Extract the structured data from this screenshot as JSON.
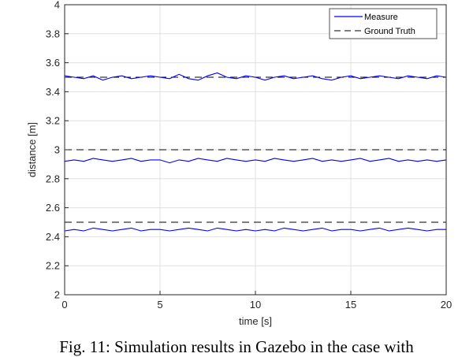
{
  "chart_data": {
    "type": "line",
    "title": "",
    "xlabel": "time [s]",
    "ylabel": "distance [m]",
    "xlim": [
      0,
      20
    ],
    "ylim": [
      2,
      4
    ],
    "xticks": [
      "0",
      "5",
      "10",
      "15",
      "20"
    ],
    "yticks": [
      "2",
      "2.2",
      "2.4",
      "2.6",
      "2.8",
      "3",
      "3.2",
      "3.4",
      "3.6",
      "3.8",
      "4"
    ],
    "grid": true,
    "legend_position": "top-right",
    "legend": [
      "Measure",
      "Ground Truth"
    ],
    "series": [
      {
        "name": "Measure",
        "style": "solid",
        "color": "#0000ff",
        "x": [
          0,
          0.5,
          1,
          1.5,
          2,
          2.5,
          3,
          3.5,
          4,
          4.5,
          5,
          5.5,
          6,
          6.5,
          7,
          7.5,
          8,
          8.5,
          9,
          9.5,
          10,
          10.5,
          11,
          11.5,
          12,
          12.5,
          13,
          13.5,
          14,
          14.5,
          15,
          15.5,
          16,
          16.5,
          17,
          17.5,
          18,
          18.5,
          19,
          19.5,
          20
        ],
        "y": [
          3.51,
          3.5,
          3.49,
          3.51,
          3.48,
          3.5,
          3.51,
          3.49,
          3.5,
          3.51,
          3.5,
          3.49,
          3.52,
          3.49,
          3.48,
          3.51,
          3.53,
          3.5,
          3.49,
          3.51,
          3.5,
          3.48,
          3.5,
          3.51,
          3.49,
          3.5,
          3.51,
          3.49,
          3.48,
          3.5,
          3.51,
          3.49,
          3.5,
          3.51,
          3.5,
          3.49,
          3.51,
          3.5,
          3.49,
          3.51,
          3.5
        ],
        "ground_truth": 3.5
      },
      {
        "name": "Measure",
        "style": "solid",
        "color": "#0000ff",
        "x": [
          0,
          0.5,
          1,
          1.5,
          2,
          2.5,
          3,
          3.5,
          4,
          4.5,
          5,
          5.5,
          6,
          6.5,
          7,
          7.5,
          8,
          8.5,
          9,
          9.5,
          10,
          10.5,
          11,
          11.5,
          12,
          12.5,
          13,
          13.5,
          14,
          14.5,
          15,
          15.5,
          16,
          16.5,
          17,
          17.5,
          18,
          18.5,
          19,
          19.5,
          20
        ],
        "y": [
          2.92,
          2.93,
          2.92,
          2.94,
          2.93,
          2.92,
          2.93,
          2.94,
          2.92,
          2.93,
          2.93,
          2.91,
          2.93,
          2.92,
          2.94,
          2.93,
          2.92,
          2.94,
          2.93,
          2.92,
          2.93,
          2.92,
          2.94,
          2.93,
          2.92,
          2.93,
          2.94,
          2.92,
          2.93,
          2.92,
          2.93,
          2.94,
          2.92,
          2.93,
          2.94,
          2.92,
          2.93,
          2.92,
          2.93,
          2.92,
          2.93
        ],
        "ground_truth": 3.0
      },
      {
        "name": "Measure",
        "style": "solid",
        "color": "#0000ff",
        "x": [
          0,
          0.5,
          1,
          1.5,
          2,
          2.5,
          3,
          3.5,
          4,
          4.5,
          5,
          5.5,
          6,
          6.5,
          7,
          7.5,
          8,
          8.5,
          9,
          9.5,
          10,
          10.5,
          11,
          11.5,
          12,
          12.5,
          13,
          13.5,
          14,
          14.5,
          15,
          15.5,
          16,
          16.5,
          17,
          17.5,
          18,
          18.5,
          19,
          19.5,
          20
        ],
        "y": [
          2.44,
          2.45,
          2.44,
          2.46,
          2.45,
          2.44,
          2.45,
          2.46,
          2.44,
          2.45,
          2.45,
          2.44,
          2.45,
          2.46,
          2.45,
          2.44,
          2.46,
          2.45,
          2.44,
          2.45,
          2.44,
          2.45,
          2.44,
          2.46,
          2.45,
          2.44,
          2.45,
          2.46,
          2.44,
          2.45,
          2.45,
          2.44,
          2.45,
          2.46,
          2.44,
          2.45,
          2.46,
          2.45,
          2.44,
          2.45,
          2.45
        ],
        "ground_truth": 2.5
      }
    ],
    "colors": {
      "measure": "#0000ff",
      "ground_truth": "#000000",
      "grid": "#e0e0e0"
    }
  },
  "caption": "Fig. 11: Simulation results in Gazebo in the case with"
}
